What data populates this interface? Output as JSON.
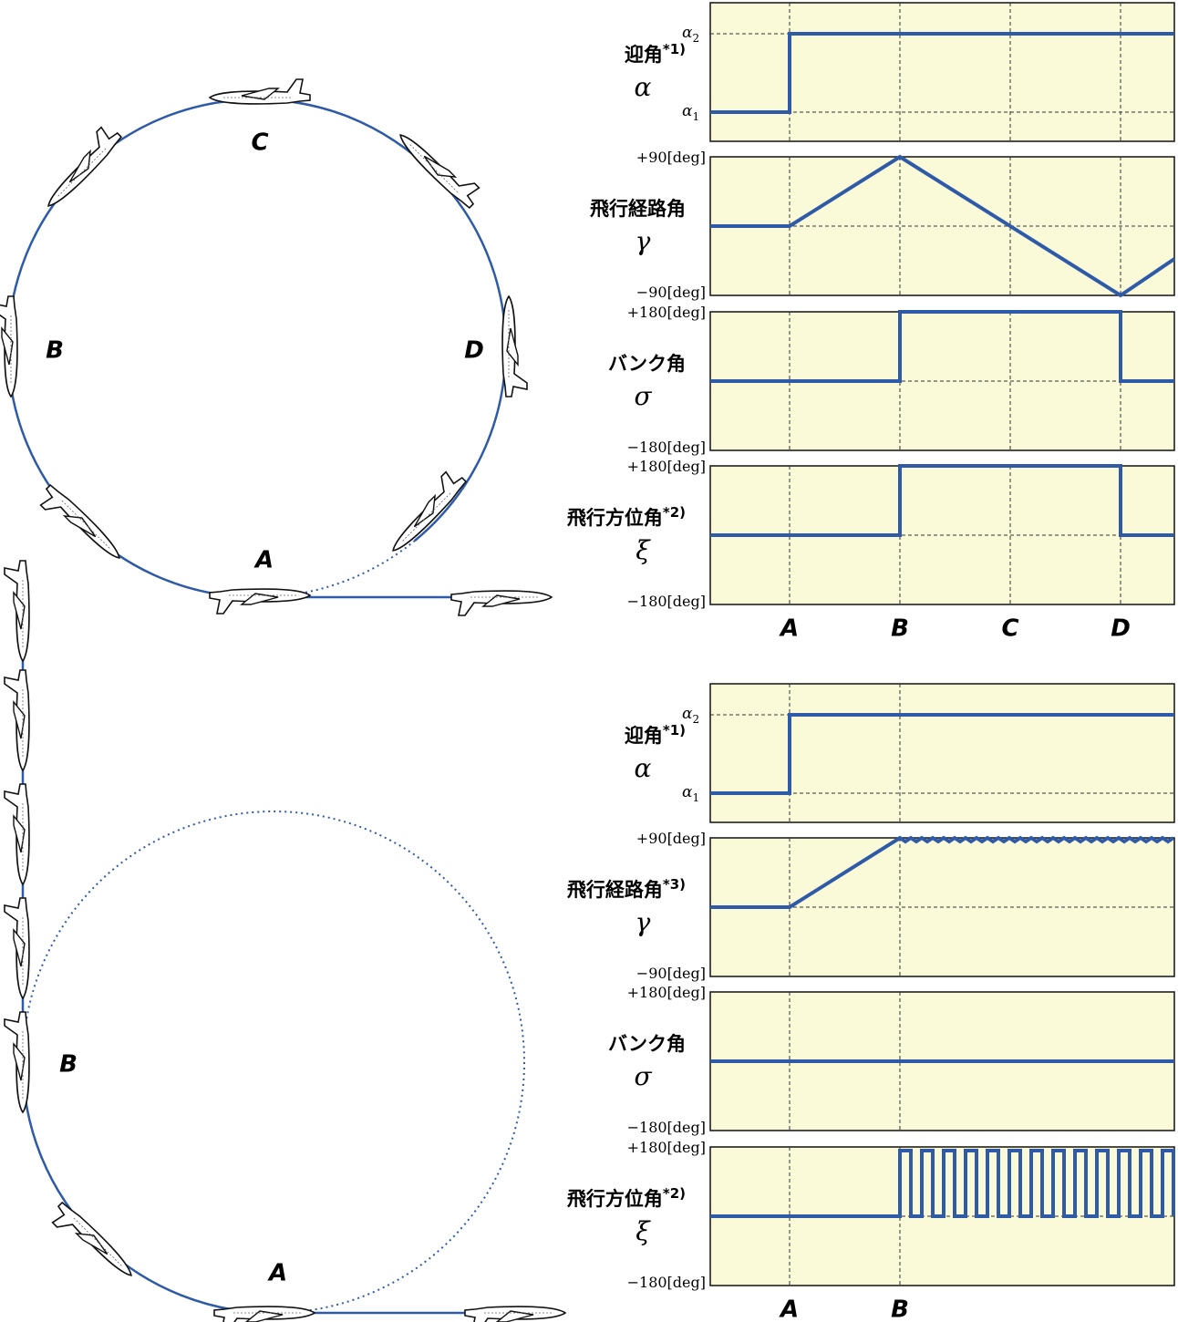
{
  "loop": {
    "points": [
      "C",
      "B",
      "D",
      "A"
    ]
  },
  "climb": {
    "points": [
      "B",
      "A"
    ]
  },
  "top_panel": {
    "rows": [
      {
        "name": "迎角",
        "note": "*1)",
        "symbol": "α",
        "top": {
          "symbol": "α",
          "sub": "2"
        },
        "bottom": {
          "symbol": "α",
          "sub": "1"
        }
      },
      {
        "name": "飛行経路角",
        "symbol": "γ",
        "top": "+90[deg]",
        "bottom": "−90[deg]"
      },
      {
        "name": "バンク角",
        "symbol": "σ",
        "top": "+180[deg]",
        "bottom": "−180[deg]"
      },
      {
        "name": "飛行方位角",
        "note": "*2)",
        "symbol": "ξ",
        "top": "+180[deg]",
        "bottom": "−180[deg]"
      }
    ],
    "x_labels": [
      "A",
      "B",
      "C",
      "D"
    ]
  },
  "bottom_panel": {
    "rows": [
      {
        "name": "迎角",
        "note": "*1)",
        "symbol": "α",
        "top": {
          "symbol": "α",
          "sub": "2"
        },
        "bottom": {
          "symbol": "α",
          "sub": "1"
        }
      },
      {
        "name": "飛行経路角",
        "note": "*3)",
        "symbol": "γ",
        "top": "+90[deg]",
        "bottom": "−90[deg]"
      },
      {
        "name": "バンク角",
        "symbol": "σ",
        "top": "+180[deg]",
        "bottom": "−180[deg]"
      },
      {
        "name": "飛行方位角",
        "note": "*2)",
        "symbol": "ξ",
        "top": "+180[deg]",
        "bottom": "−180[deg]"
      }
    ],
    "x_labels": [
      "A",
      "B"
    ]
  }
}
